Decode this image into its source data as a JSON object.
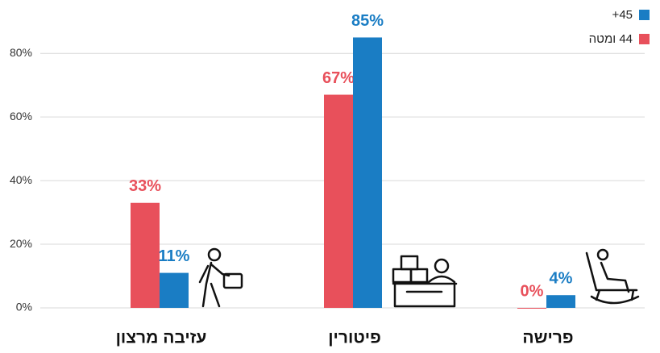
{
  "chart_data": {
    "type": "bar",
    "categories": [
      "עזיבה מרצון",
      "פיטורין",
      "פרישה"
    ],
    "series": [
      {
        "name": "44 ומטה",
        "color": "#e8505b",
        "values": [
          33,
          67,
          0
        ],
        "value_labels": [
          "33%",
          "67%",
          "0%"
        ]
      },
      {
        "name": "45+",
        "color": "#1a7dc4",
        "values": [
          11,
          85,
          4
        ],
        "value_labels": [
          "11%",
          "85%",
          "4%"
        ]
      }
    ],
    "ylim": [
      0,
      95
    ],
    "yticks": [
      {
        "value": 0,
        "label": "0%"
      },
      {
        "value": 20,
        "label": "20%"
      },
      {
        "value": 40,
        "label": "40%"
      },
      {
        "value": 60,
        "label": "60%"
      },
      {
        "value": 80,
        "label": "80%"
      }
    ],
    "grid": true,
    "legend": "top-right"
  }
}
